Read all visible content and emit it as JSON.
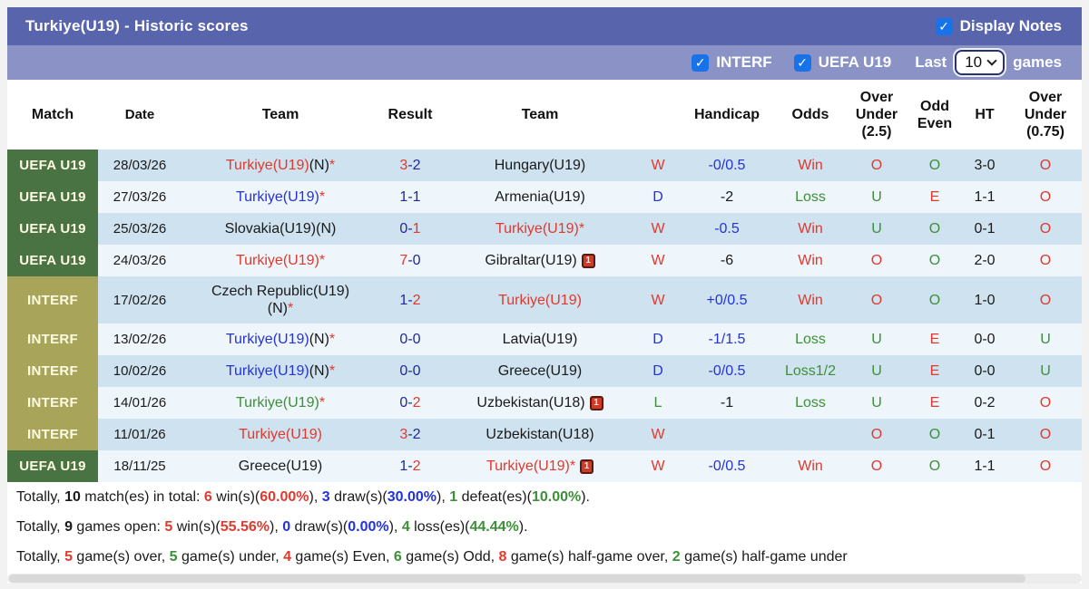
{
  "palette": {
    "red": "#e1392d",
    "blue": "#2433d9",
    "navy": "#1e2a99",
    "green": "#3c9038",
    "black": "#1a1a1a"
  },
  "header": {
    "title": "Turkiye(U19) - Historic scores",
    "display_notes_label": "Display Notes",
    "display_notes_checked": true,
    "filters": [
      {
        "label": "INTERF",
        "checked": true
      },
      {
        "label": "UEFA U19",
        "checked": true
      }
    ],
    "last_label": "Last",
    "last_value": "10",
    "games_label": "games"
  },
  "table": {
    "columns": [
      {
        "key": "match",
        "label": [
          "Match"
        ]
      },
      {
        "key": "date",
        "label": [
          "Date"
        ]
      },
      {
        "key": "home",
        "label": [
          "Team"
        ]
      },
      {
        "key": "result",
        "label": [
          "Result"
        ]
      },
      {
        "key": "away",
        "label": [
          "Team"
        ]
      },
      {
        "key": "wdl",
        "label": [
          ""
        ]
      },
      {
        "key": "handicap",
        "label": [
          "Handicap"
        ]
      },
      {
        "key": "odds",
        "label": [
          "Odds"
        ]
      },
      {
        "key": "ou25",
        "label": [
          "Over",
          "Under",
          "(2.5)"
        ]
      },
      {
        "key": "oddeven",
        "label": [
          "Odd",
          "Even"
        ]
      },
      {
        "key": "ht",
        "label": [
          "HT"
        ]
      },
      {
        "key": "ou075",
        "label": [
          "Over",
          "Under",
          "(0.75)"
        ]
      }
    ],
    "rows": [
      {
        "comp": {
          "label": "UEFA U19",
          "type": "uefa"
        },
        "date": "28/03/26",
        "home": [
          {
            "t": "Turkiye(U19)",
            "c": "red"
          },
          {
            "t": "(N)",
            "c": "black"
          },
          {
            "t": "*",
            "c": "red"
          }
        ],
        "result": [
          {
            "t": "3",
            "c": "red"
          },
          {
            "t": "-",
            "c": "navy"
          },
          {
            "t": "2",
            "c": "navy"
          }
        ],
        "away": [
          {
            "t": "Hungary(U19)",
            "c": "black"
          }
        ],
        "away_card": false,
        "home_card": false,
        "wdl": {
          "t": "W",
          "c": "red"
        },
        "handicap": {
          "t": "-0/0.5",
          "c": "blue"
        },
        "odds": {
          "t": "Win",
          "c": "red"
        },
        "ou25": {
          "t": "O",
          "c": "red"
        },
        "oddeven": {
          "t": "O",
          "c": "green"
        },
        "ht": "3-0",
        "ou075": {
          "t": "O",
          "c": "red"
        }
      },
      {
        "comp": {
          "label": "UEFA U19",
          "type": "uefa"
        },
        "date": "27/03/26",
        "home": [
          {
            "t": "Turkiye(U19)",
            "c": "blue"
          },
          {
            "t": "*",
            "c": "red"
          }
        ],
        "result": [
          {
            "t": "1",
            "c": "navy"
          },
          {
            "t": "-",
            "c": "navy"
          },
          {
            "t": "1",
            "c": "navy"
          }
        ],
        "away": [
          {
            "t": "Armenia(U19)",
            "c": "black"
          }
        ],
        "away_card": false,
        "home_card": false,
        "wdl": {
          "t": "D",
          "c": "blue"
        },
        "handicap": {
          "t": "-2",
          "c": "black"
        },
        "odds": {
          "t": "Loss",
          "c": "green"
        },
        "ou25": {
          "t": "U",
          "c": "green"
        },
        "oddeven": {
          "t": "E",
          "c": "red"
        },
        "ht": "1-1",
        "ou075": {
          "t": "O",
          "c": "red"
        }
      },
      {
        "comp": {
          "label": "UEFA U19",
          "type": "uefa"
        },
        "date": "25/03/26",
        "home": [
          {
            "t": "Slovakia(U19)(N)",
            "c": "black"
          }
        ],
        "result": [
          {
            "t": "0",
            "c": "navy"
          },
          {
            "t": "-",
            "c": "navy"
          },
          {
            "t": "1",
            "c": "red"
          }
        ],
        "away": [
          {
            "t": "Turkiye(U19)*",
            "c": "red"
          }
        ],
        "away_card": false,
        "home_card": false,
        "wdl": {
          "t": "W",
          "c": "red"
        },
        "handicap": {
          "t": "-0.5",
          "c": "blue"
        },
        "odds": {
          "t": "Win",
          "c": "red"
        },
        "ou25": {
          "t": "U",
          "c": "green"
        },
        "oddeven": {
          "t": "O",
          "c": "green"
        },
        "ht": "0-1",
        "ou075": {
          "t": "O",
          "c": "red"
        }
      },
      {
        "comp": {
          "label": "UEFA U19",
          "type": "uefa"
        },
        "date": "24/03/26",
        "home": [
          {
            "t": "Turkiye(U19)*",
            "c": "red"
          }
        ],
        "result": [
          {
            "t": "7",
            "c": "red"
          },
          {
            "t": "-",
            "c": "navy"
          },
          {
            "t": "0",
            "c": "navy"
          }
        ],
        "away": [
          {
            "t": "Gibraltar(U19)",
            "c": "black"
          }
        ],
        "away_card": true,
        "home_card": false,
        "wdl": {
          "t": "W",
          "c": "red"
        },
        "handicap": {
          "t": "-6",
          "c": "black"
        },
        "odds": {
          "t": "Win",
          "c": "red"
        },
        "ou25": {
          "t": "O",
          "c": "red"
        },
        "oddeven": {
          "t": "O",
          "c": "green"
        },
        "ht": "2-0",
        "ou075": {
          "t": "O",
          "c": "red"
        }
      },
      {
        "comp": {
          "label": "INTERF",
          "type": "interf"
        },
        "date": "17/02/26",
        "tall": true,
        "home": [
          {
            "t": "Czech Republic(U19)",
            "c": "black"
          },
          {
            "br": true
          },
          {
            "t": "(N)",
            "c": "black"
          },
          {
            "t": "*",
            "c": "red"
          }
        ],
        "result": [
          {
            "t": "1",
            "c": "navy"
          },
          {
            "t": "-",
            "c": "navy"
          },
          {
            "t": "2",
            "c": "red"
          }
        ],
        "away": [
          {
            "t": "Turkiye(U19)",
            "c": "red"
          }
        ],
        "away_card": false,
        "home_card": false,
        "wdl": {
          "t": "W",
          "c": "red"
        },
        "handicap": {
          "t": "+0/0.5",
          "c": "blue"
        },
        "odds": {
          "t": "Win",
          "c": "red"
        },
        "ou25": {
          "t": "O",
          "c": "red"
        },
        "oddeven": {
          "t": "O",
          "c": "green"
        },
        "ht": "1-0",
        "ou075": {
          "t": "O",
          "c": "red"
        }
      },
      {
        "comp": {
          "label": "INTERF",
          "type": "interf"
        },
        "date": "13/02/26",
        "home": [
          {
            "t": "Turkiye(U19)",
            "c": "blue"
          },
          {
            "t": "(N)",
            "c": "black"
          },
          {
            "t": "*",
            "c": "red"
          }
        ],
        "result": [
          {
            "t": "0",
            "c": "navy"
          },
          {
            "t": "-",
            "c": "navy"
          },
          {
            "t": "0",
            "c": "navy"
          }
        ],
        "away": [
          {
            "t": "Latvia(U19)",
            "c": "black"
          }
        ],
        "away_card": false,
        "home_card": false,
        "wdl": {
          "t": "D",
          "c": "blue"
        },
        "handicap": {
          "t": "-1/1.5",
          "c": "blue"
        },
        "odds": {
          "t": "Loss",
          "c": "green"
        },
        "ou25": {
          "t": "U",
          "c": "green"
        },
        "oddeven": {
          "t": "E",
          "c": "red"
        },
        "ht": "0-0",
        "ou075": {
          "t": "U",
          "c": "green"
        }
      },
      {
        "comp": {
          "label": "INTERF",
          "type": "interf"
        },
        "date": "10/02/26",
        "home": [
          {
            "t": "Turkiye(U19)",
            "c": "blue"
          },
          {
            "t": "(N)",
            "c": "black"
          },
          {
            "t": "*",
            "c": "red"
          }
        ],
        "result": [
          {
            "t": "0",
            "c": "navy"
          },
          {
            "t": "-",
            "c": "navy"
          },
          {
            "t": "0",
            "c": "navy"
          }
        ],
        "away": [
          {
            "t": "Greece(U19)",
            "c": "black"
          }
        ],
        "away_card": false,
        "home_card": false,
        "wdl": {
          "t": "D",
          "c": "blue"
        },
        "handicap": {
          "t": "-0/0.5",
          "c": "blue"
        },
        "odds": {
          "t": "Loss1/2",
          "c": "green"
        },
        "ou25": {
          "t": "U",
          "c": "green"
        },
        "oddeven": {
          "t": "E",
          "c": "red"
        },
        "ht": "0-0",
        "ou075": {
          "t": "U",
          "c": "green"
        }
      },
      {
        "comp": {
          "label": "INTERF",
          "type": "interf"
        },
        "date": "14/01/26",
        "home": [
          {
            "t": "Turkiye(U19)",
            "c": "green"
          },
          {
            "t": "*",
            "c": "red"
          }
        ],
        "result": [
          {
            "t": "0",
            "c": "navy"
          },
          {
            "t": "-",
            "c": "navy"
          },
          {
            "t": "2",
            "c": "red"
          }
        ],
        "away": [
          {
            "t": "Uzbekistan(U18)",
            "c": "black"
          }
        ],
        "away_card": true,
        "home_card": false,
        "wdl": {
          "t": "L",
          "c": "green"
        },
        "handicap": {
          "t": "-1",
          "c": "black"
        },
        "odds": {
          "t": "Loss",
          "c": "green"
        },
        "ou25": {
          "t": "U",
          "c": "green"
        },
        "oddeven": {
          "t": "E",
          "c": "red"
        },
        "ht": "0-2",
        "ou075": {
          "t": "O",
          "c": "red"
        }
      },
      {
        "comp": {
          "label": "INTERF",
          "type": "interf"
        },
        "date": "11/01/26",
        "home": [
          {
            "t": "Turkiye(U19)",
            "c": "red"
          }
        ],
        "result": [
          {
            "t": "3",
            "c": "red"
          },
          {
            "t": "-",
            "c": "navy"
          },
          {
            "t": "2",
            "c": "navy"
          }
        ],
        "away": [
          {
            "t": "Uzbekistan(U18)",
            "c": "black"
          }
        ],
        "away_card": false,
        "home_card": false,
        "wdl": {
          "t": "W",
          "c": "red"
        },
        "handicap": {
          "t": "",
          "c": "black"
        },
        "odds": {
          "t": "",
          "c": "black"
        },
        "ou25": {
          "t": "O",
          "c": "red"
        },
        "oddeven": {
          "t": "O",
          "c": "green"
        },
        "ht": "0-1",
        "ou075": {
          "t": "O",
          "c": "red"
        }
      },
      {
        "comp": {
          "label": "UEFA U19",
          "type": "uefa"
        },
        "date": "18/11/25",
        "home": [
          {
            "t": "Greece(U19)",
            "c": "black"
          }
        ],
        "result": [
          {
            "t": "1",
            "c": "navy"
          },
          {
            "t": "-",
            "c": "navy"
          },
          {
            "t": "2",
            "c": "red"
          }
        ],
        "away": [
          {
            "t": "Turkiye(U19)*",
            "c": "red"
          }
        ],
        "away_card": true,
        "home_card": false,
        "wdl": {
          "t": "W",
          "c": "red"
        },
        "handicap": {
          "t": "-0/0.5",
          "c": "blue"
        },
        "odds": {
          "t": "Win",
          "c": "red"
        },
        "ou25": {
          "t": "O",
          "c": "red"
        },
        "oddeven": {
          "t": "O",
          "c": "green"
        },
        "ht": "1-1",
        "ou075": {
          "t": "O",
          "c": "red"
        }
      }
    ]
  },
  "summary": {
    "lines": [
      [
        {
          "t": "Totally, "
        },
        {
          "t": "10",
          "b": true
        },
        {
          "t": " match(es) in total: "
        },
        {
          "t": "6",
          "c": "red",
          "b": true
        },
        {
          "t": " win(s)("
        },
        {
          "t": "60.00%",
          "c": "red",
          "b": true
        },
        {
          "t": "), "
        },
        {
          "t": "3",
          "c": "blue",
          "b": true
        },
        {
          "t": " draw(s)("
        },
        {
          "t": "30.00%",
          "c": "blue",
          "b": true
        },
        {
          "t": "), "
        },
        {
          "t": "1",
          "c": "green",
          "b": true
        },
        {
          "t": " defeat(es)("
        },
        {
          "t": "10.00%",
          "c": "green",
          "b": true
        },
        {
          "t": ")."
        }
      ],
      [
        {
          "t": "Totally, "
        },
        {
          "t": "9",
          "b": true
        },
        {
          "t": " games open: "
        },
        {
          "t": "5",
          "c": "red",
          "b": true
        },
        {
          "t": " win(s)("
        },
        {
          "t": "55.56%",
          "c": "red",
          "b": true
        },
        {
          "t": "), "
        },
        {
          "t": "0",
          "c": "blue",
          "b": true
        },
        {
          "t": " draw(s)("
        },
        {
          "t": "0.00%",
          "c": "blue",
          "b": true
        },
        {
          "t": "), "
        },
        {
          "t": "4",
          "c": "green",
          "b": true
        },
        {
          "t": " loss(es)("
        },
        {
          "t": "44.44%",
          "c": "green",
          "b": true
        },
        {
          "t": ")."
        }
      ],
      [
        {
          "t": "Totally, "
        },
        {
          "t": "5",
          "c": "red",
          "b": true
        },
        {
          "t": " game(s) over, "
        },
        {
          "t": "5",
          "c": "green",
          "b": true
        },
        {
          "t": " game(s) under, "
        },
        {
          "t": "4",
          "c": "red",
          "b": true
        },
        {
          "t": " game(s) Even, "
        },
        {
          "t": "6",
          "c": "green",
          "b": true
        },
        {
          "t": " game(s) Odd, "
        },
        {
          "t": "8",
          "c": "red",
          "b": true
        },
        {
          "t": " game(s) half-game over, "
        },
        {
          "t": "2",
          "c": "green",
          "b": true
        },
        {
          "t": " game(s) half-game under"
        }
      ]
    ]
  },
  "icons": {
    "red_card": "red-card-icon",
    "checkmark": "checkmark",
    "chevron_down": "chevron-down-icon"
  }
}
